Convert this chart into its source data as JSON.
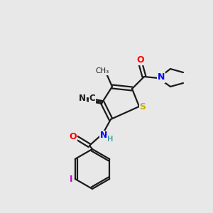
{
  "background_color": "#e8e8e8",
  "bond_color": "#1a1a1a",
  "atom_colors": {
    "O": "#ff0000",
    "N": "#0000ff",
    "S": "#ccaa00",
    "C_triple": "#1a1a1a",
    "N_triple": "#1a1a1a",
    "I": "#cc00cc",
    "H": "#008080"
  },
  "figsize": [
    3.0,
    3.0
  ],
  "dpi": 100
}
